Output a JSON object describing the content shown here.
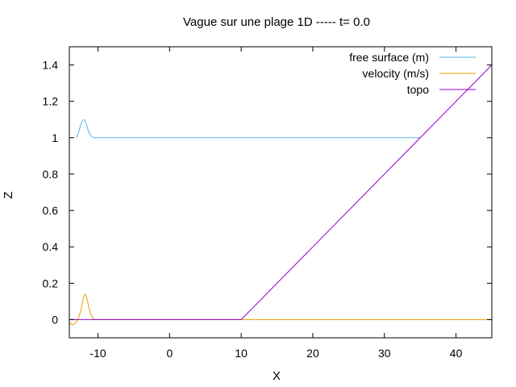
{
  "chart_data": {
    "type": "line",
    "title": "Vague sur une plage 1D ----- t= 0.0",
    "xlabel": "X",
    "ylabel": "Z",
    "xlim": [
      -14,
      45
    ],
    "ylim": [
      -0.1,
      1.5
    ],
    "xticks": [
      -10,
      0,
      10,
      20,
      30,
      40
    ],
    "yticks": [
      0,
      0.2,
      0.4,
      0.6,
      0.8,
      1,
      1.2,
      1.4
    ],
    "xtick_labels": [
      "-10",
      "0",
      "10",
      "20",
      "30",
      "40"
    ],
    "ytick_labels": [
      "0",
      "0.2",
      "0.4",
      "0.6",
      "0.8",
      "1",
      "1.2",
      "1.4"
    ],
    "grid": false,
    "legend_position": "top-right",
    "series": [
      {
        "name": "free surface (m)",
        "color": "#56b4e9",
        "x": [
          -13.0,
          -12.8,
          -12.6,
          -12.4,
          -12.2,
          -12.0,
          -11.8,
          -11.6,
          -11.4,
          -11.2,
          -11.0,
          -10.8,
          -10.6,
          -10.4,
          -10.2,
          -10.0,
          35.0
        ],
        "y": [
          1.0,
          1.018,
          1.045,
          1.073,
          1.092,
          1.1,
          1.092,
          1.073,
          1.045,
          1.025,
          1.012,
          1.005,
          1.002,
          1.0,
          1.0,
          1.0,
          1.0
        ]
      },
      {
        "name": "velocity (m/s)",
        "color": "#e69f00",
        "x": [
          -14.0,
          -13.6,
          -13.2,
          -12.8,
          -12.4,
          -12.2,
          -12.0,
          -11.8,
          -11.6,
          -11.4,
          -11.2,
          -11.0,
          -10.8,
          -10.6,
          -10.4,
          -10.2,
          -10.0,
          -9.6,
          45.0
        ],
        "y": [
          -0.015,
          -0.03,
          -0.02,
          0.0,
          0.05,
          0.09,
          0.125,
          0.14,
          0.125,
          0.09,
          0.055,
          0.03,
          0.012,
          0.004,
          0.001,
          0.0,
          0.0,
          0.0,
          0.0
        ]
      },
      {
        "name": "topo",
        "color": "#9400d3",
        "x": [
          -14.0,
          10.0,
          45.0
        ],
        "y": [
          0.0,
          0.0,
          1.4
        ]
      }
    ]
  }
}
